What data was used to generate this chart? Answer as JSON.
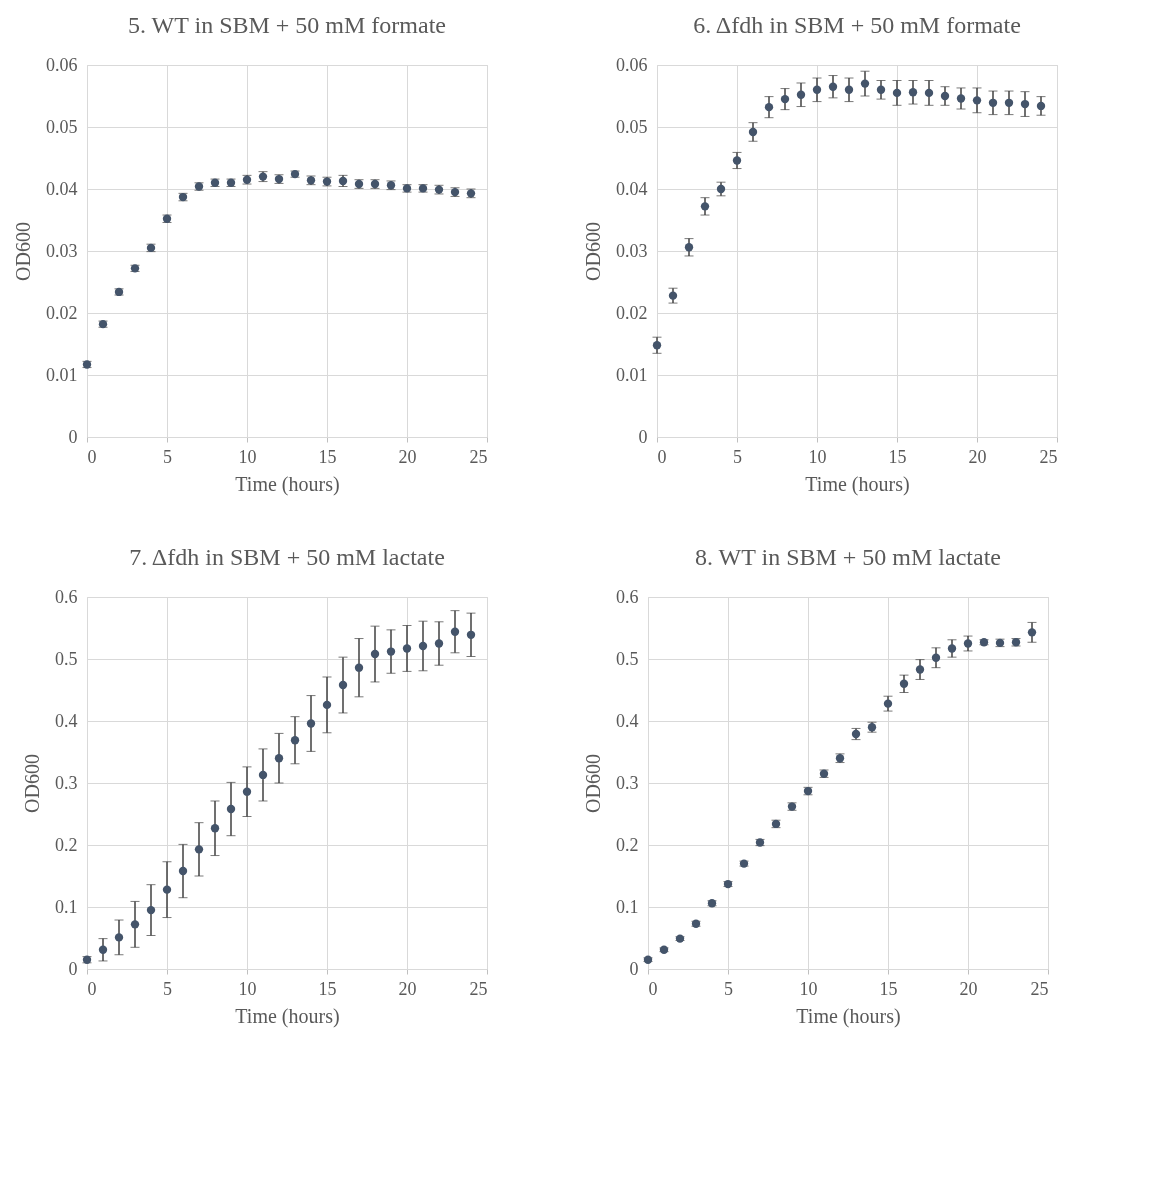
{
  "chart_data": [
    {
      "type": "scatter",
      "title": "5. WT in SBM + 50 mM formate",
      "xlabel": "Time (hours)",
      "ylabel": "OD600",
      "color": "#44546a",
      "marker": "circle",
      "grid": true,
      "xlim": [
        0,
        25
      ],
      "xticks": [
        0,
        5,
        10,
        15,
        20,
        25
      ],
      "ylim": [
        0,
        0.06
      ],
      "yticks": [
        0,
        0.01,
        0.02,
        0.03,
        0.04,
        0.05,
        0.06
      ],
      "x": [
        0,
        1,
        2,
        3,
        4,
        5,
        6,
        7,
        8,
        9,
        10,
        11,
        12,
        13,
        14,
        15,
        16,
        17,
        18,
        19,
        20,
        21,
        22,
        23,
        24
      ],
      "values": [
        0.0117,
        0.0182,
        0.0234,
        0.0272,
        0.0305,
        0.0352,
        0.0387,
        0.0404,
        0.041,
        0.041,
        0.0415,
        0.042,
        0.0416,
        0.0424,
        0.0414,
        0.0412,
        0.0413,
        0.0408,
        0.0408,
        0.0406,
        0.0401,
        0.0401,
        0.0399,
        0.0395,
        0.0393
      ],
      "errors": [
        0.0005,
        0.0005,
        0.0005,
        0.0005,
        0.0006,
        0.0006,
        0.0006,
        0.0006,
        0.0006,
        0.0006,
        0.0007,
        0.0008,
        0.0007,
        0.0005,
        0.0007,
        0.0007,
        0.0009,
        0.0007,
        0.0007,
        0.0007,
        0.0006,
        0.0006,
        0.0007,
        0.0007,
        0.0007
      ]
    },
    {
      "type": "scatter",
      "title": "6. Δfdh in SBM + 50 mM formate",
      "xlabel": "Time (hours)",
      "ylabel": "OD600",
      "color": "#44546a",
      "marker": "circle",
      "grid": true,
      "xlim": [
        0,
        25
      ],
      "xticks": [
        0,
        5,
        10,
        15,
        20,
        25
      ],
      "ylim": [
        0,
        0.06
      ],
      "yticks": [
        0,
        0.01,
        0.02,
        0.03,
        0.04,
        0.05,
        0.06
      ],
      "x": [
        0,
        1,
        2,
        3,
        4,
        5,
        6,
        7,
        8,
        9,
        10,
        11,
        12,
        13,
        14,
        15,
        16,
        17,
        18,
        19,
        20,
        21,
        22,
        23,
        24
      ],
      "values": [
        0.0148,
        0.0228,
        0.0306,
        0.0372,
        0.04,
        0.0446,
        0.0492,
        0.0532,
        0.0545,
        0.0552,
        0.056,
        0.0565,
        0.056,
        0.057,
        0.056,
        0.0555,
        0.0556,
        0.0555,
        0.055,
        0.0546,
        0.0543,
        0.0539,
        0.0539,
        0.0537,
        0.0534
      ],
      "errors": [
        0.0013,
        0.0012,
        0.0014,
        0.0014,
        0.0011,
        0.0013,
        0.0015,
        0.0017,
        0.0017,
        0.0019,
        0.0019,
        0.0018,
        0.0019,
        0.002,
        0.0015,
        0.002,
        0.0019,
        0.002,
        0.0015,
        0.0017,
        0.002,
        0.0019,
        0.0019,
        0.002,
        0.0015
      ]
    },
    {
      "type": "scatter",
      "title": "7. Δfdh in SBM + 50 mM lactate",
      "xlabel": "Time (hours)",
      "ylabel": "OD600",
      "color": "#44546a",
      "marker": "circle",
      "grid": true,
      "xlim": [
        0,
        25
      ],
      "xticks": [
        0,
        5,
        10,
        15,
        20,
        25
      ],
      "ylim": [
        0,
        0.6
      ],
      "yticks": [
        0,
        0.1,
        0.2,
        0.3,
        0.4,
        0.5,
        0.6
      ],
      "x": [
        0,
        1,
        2,
        3,
        4,
        5,
        6,
        7,
        8,
        9,
        10,
        11,
        12,
        13,
        14,
        15,
        16,
        17,
        18,
        19,
        20,
        21,
        22,
        23,
        24
      ],
      "values": [
        0.015,
        0.031,
        0.051,
        0.072,
        0.095,
        0.128,
        0.158,
        0.193,
        0.227,
        0.258,
        0.286,
        0.313,
        0.34,
        0.369,
        0.396,
        0.426,
        0.458,
        0.486,
        0.508,
        0.512,
        0.517,
        0.521,
        0.525,
        0.544,
        0.539
      ],
      "errors": [
        0.005,
        0.018,
        0.028,
        0.037,
        0.041,
        0.045,
        0.043,
        0.043,
        0.044,
        0.043,
        0.04,
        0.042,
        0.04,
        0.038,
        0.045,
        0.045,
        0.045,
        0.047,
        0.045,
        0.035,
        0.037,
        0.04,
        0.035,
        0.034,
        0.035
      ]
    },
    {
      "type": "scatter",
      "title": "8. WT in SBM + 50 mM lactate",
      "xlabel": "Time (hours)",
      "ylabel": "OD600",
      "color": "#44546a",
      "marker": "circle",
      "grid": true,
      "xlim": [
        0,
        25
      ],
      "xticks": [
        0,
        5,
        10,
        15,
        20,
        25
      ],
      "ylim": [
        0,
        0.6
      ],
      "yticks": [
        0,
        0.1,
        0.2,
        0.3,
        0.4,
        0.5,
        0.6
      ],
      "x": [
        0,
        1,
        2,
        3,
        4,
        5,
        6,
        7,
        8,
        9,
        10,
        11,
        12,
        13,
        14,
        15,
        16,
        17,
        18,
        19,
        20,
        21,
        22,
        23,
        24
      ],
      "values": [
        0.015,
        0.031,
        0.049,
        0.073,
        0.106,
        0.137,
        0.17,
        0.204,
        0.234,
        0.262,
        0.287,
        0.315,
        0.34,
        0.379,
        0.39,
        0.428,
        0.46,
        0.483,
        0.502,
        0.517,
        0.525,
        0.527,
        0.526,
        0.527,
        0.543
      ],
      "errors": [
        0.003,
        0.003,
        0.003,
        0.004,
        0.004,
        0.004,
        0.004,
        0.005,
        0.006,
        0.006,
        0.006,
        0.006,
        0.007,
        0.009,
        0.008,
        0.012,
        0.014,
        0.016,
        0.016,
        0.014,
        0.012,
        0.004,
        0.006,
        0.006,
        0.016
      ]
    }
  ]
}
